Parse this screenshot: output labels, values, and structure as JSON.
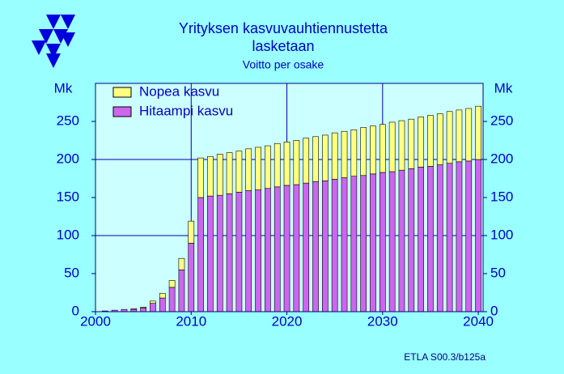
{
  "chart_data": {
    "type": "bar",
    "stacked": true,
    "title": "Yrityksen  kasvuvauhtiennustetta",
    "title_line2": "lasketaan",
    "subtitle": "Voitto per osake",
    "ylabel": "Mk",
    "y2label": "Mk",
    "source": "ETLA S00.3/b125a",
    "x": [
      2001,
      2002,
      2003,
      2004,
      2005,
      2006,
      2007,
      2008,
      2009,
      2010,
      2011,
      2012,
      2013,
      2014,
      2015,
      2016,
      2017,
      2018,
      2019,
      2020,
      2021,
      2022,
      2023,
      2024,
      2025,
      2026,
      2027,
      2028,
      2029,
      2030,
      2031,
      2032,
      2033,
      2034,
      2035,
      2036,
      2037,
      2038,
      2039,
      2040
    ],
    "series": [
      {
        "name": "Nopea kasvu",
        "color": "#ffff80",
        "values": [
          0,
          0,
          0,
          1,
          1,
          3,
          6,
          9,
          15,
          29,
          52,
          52,
          54,
          54,
          54,
          55,
          56,
          56,
          57,
          57,
          58,
          59,
          59,
          60,
          61,
          61,
          61,
          63,
          63,
          63,
          65,
          65,
          65,
          66,
          67,
          67,
          68,
          68,
          69,
          70
        ]
      },
      {
        "name": "Hitaampi kasvu",
        "color": "#cc66ee",
        "values": [
          1,
          2,
          3,
          3,
          5,
          11,
          18,
          32,
          55,
          90,
          150,
          152,
          153,
          155,
          157,
          159,
          160,
          162,
          164,
          166,
          167,
          169,
          171,
          172,
          174,
          176,
          178,
          179,
          181,
          183,
          184,
          186,
          188,
          190,
          191,
          193,
          195,
          197,
          198,
          200
        ]
      }
    ],
    "xlim": [
      2000,
      2040.5
    ],
    "xticks": [
      2000,
      2010,
      2020,
      2030,
      2040
    ],
    "ylim": [
      0,
      300
    ],
    "yticks": [
      0,
      50,
      100,
      150,
      200,
      250
    ],
    "y2lim": [
      0,
      300
    ],
    "y2ticks": [
      0,
      50,
      100,
      150,
      200,
      250
    ],
    "ygrid": [
      100,
      200
    ],
    "xgrid": [
      2010,
      2020,
      2030
    ],
    "legend": "top-left"
  }
}
